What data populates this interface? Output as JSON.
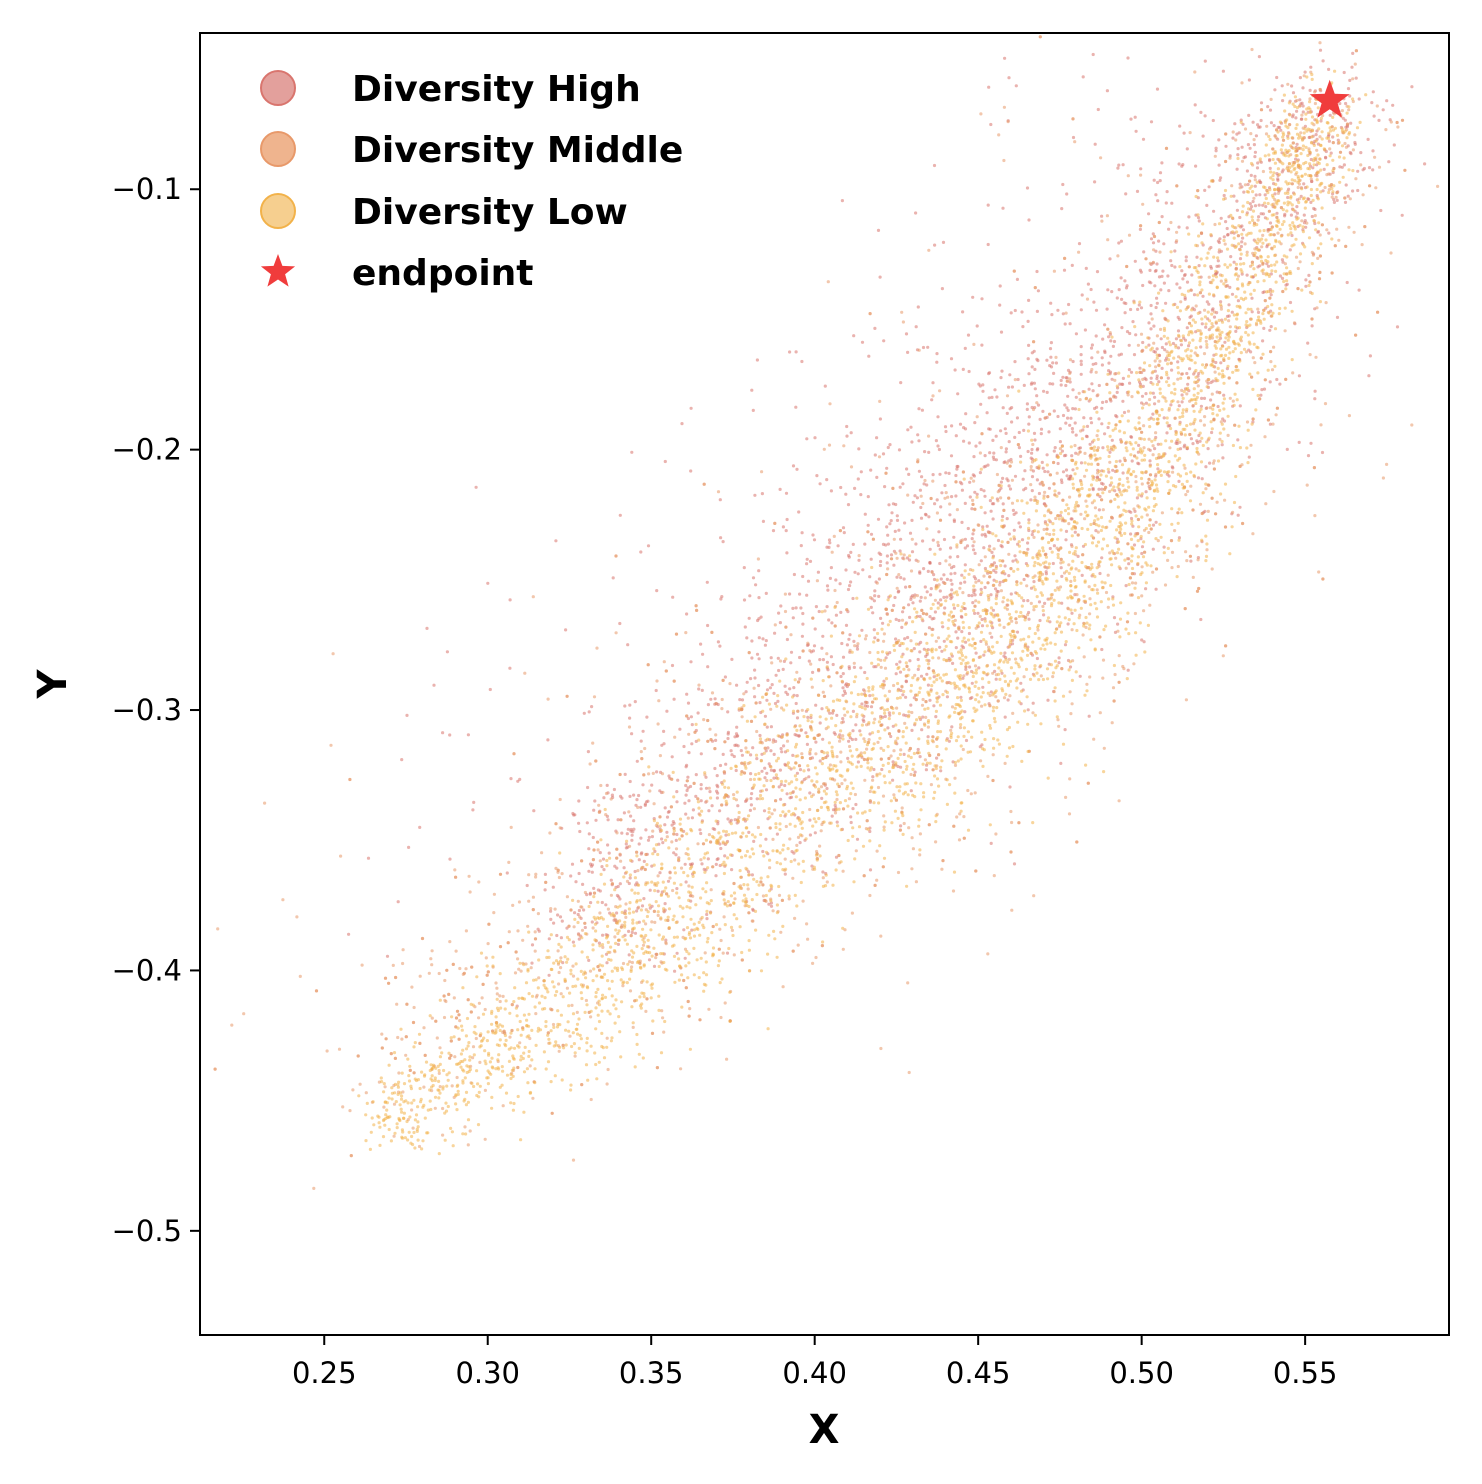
{
  "chart_data": {
    "type": "scatter",
    "title": "",
    "xlabel": "X",
    "ylabel": "Y",
    "xlim": [
      0.212,
      0.594
    ],
    "ylim": [
      -0.54,
      -0.04
    ],
    "xticks": [
      0.25,
      0.3,
      0.35,
      0.4,
      0.45,
      0.5,
      0.55
    ],
    "xtick_labels": [
      "0.25",
      "0.30",
      "0.35",
      "0.40",
      "0.45",
      "0.50",
      "0.55"
    ],
    "yticks": [
      -0.1,
      -0.2,
      -0.3,
      -0.4,
      -0.5
    ],
    "ytick_labels": [
      "−0.1",
      "−0.2",
      "−0.3",
      "−0.4",
      "−0.5"
    ],
    "grid": false,
    "legend_position": "top-left",
    "series": [
      {
        "name": "Diversity High",
        "color": "#d9756e",
        "spine": [
          [
            0.33,
            -0.385
          ],
          [
            0.4,
            -0.3
          ],
          [
            0.45,
            -0.235
          ],
          [
            0.5,
            -0.17
          ],
          [
            0.557,
            -0.068
          ]
        ],
        "spread": [
          0.045,
          0.03
        ],
        "description": "cloud concentrated along upper part of the diagonal band"
      },
      {
        "name": "Diversity Middle",
        "color": "#e8996a",
        "spine": [
          [
            0.27,
            -0.45
          ],
          [
            0.34,
            -0.385
          ],
          [
            0.4,
            -0.325
          ],
          [
            0.46,
            -0.26
          ],
          [
            0.51,
            -0.19
          ],
          [
            0.557,
            -0.068
          ]
        ],
        "spread": [
          0.05,
          0.035
        ],
        "description": "wide cloud with outlying fan-shaped tails to the lower-left"
      },
      {
        "name": "Diversity Low",
        "color": "#f2b24a",
        "spine": [
          [
            0.265,
            -0.46
          ],
          [
            0.33,
            -0.41
          ],
          [
            0.4,
            -0.33
          ],
          [
            0.46,
            -0.27
          ],
          [
            0.51,
            -0.19
          ],
          [
            0.557,
            -0.068
          ]
        ],
        "spread": [
          0.025,
          0.02
        ],
        "description": "dense narrow band along the main diagonal"
      }
    ],
    "endpoint": {
      "name": "endpoint",
      "x": 0.5575,
      "y": -0.066,
      "color": "#f03c3c"
    },
    "legend": [
      {
        "label": "Diversity High",
        "marker": "circle",
        "color": "#e3a09c",
        "edge": "#d9756e"
      },
      {
        "label": "Diversity Middle",
        "marker": "circle",
        "color": "#efb48e",
        "edge": "#e8996a"
      },
      {
        "label": "Diversity Low",
        "marker": "circle",
        "color": "#f6cf8f",
        "edge": "#f2b24a"
      },
      {
        "label": "endpoint",
        "marker": "star",
        "color": "#f03c3c"
      }
    ]
  }
}
